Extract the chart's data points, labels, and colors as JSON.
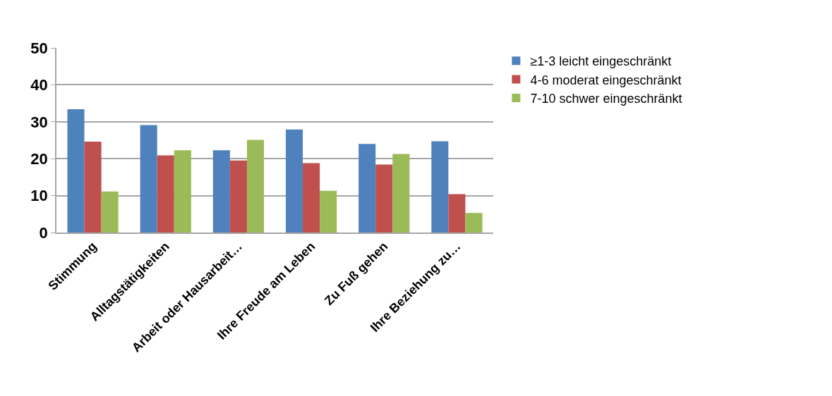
{
  "chart_data": {
    "type": "bar",
    "categories": [
      "Stimmung",
      "Alltagstätigkeiten",
      "Arbeit oder Hausarbeit…",
      "Ihre Freude am Leben",
      "Zu Fuß gehen",
      "Ihre Beziehung zu…"
    ],
    "series": [
      {
        "name": "≥1-3 leicht eingeschränkt",
        "color": "#4f81bd",
        "values": [
          33.4,
          29.1,
          22.3,
          27.9,
          24.0,
          24.7
        ]
      },
      {
        "name": "4-6 moderat eingeschränkt",
        "color": "#c0504d",
        "values": [
          24.6,
          20.9,
          19.5,
          18.8,
          18.4,
          10.4
        ]
      },
      {
        "name": "7-10 schwer eingeschränkt",
        "color": "#9bbb59",
        "values": [
          11.1,
          22.3,
          25.1,
          11.3,
          21.3,
          5.3
        ]
      }
    ],
    "ylim": [
      0,
      50
    ],
    "yticks": [
      0,
      10,
      20,
      30,
      40,
      50
    ],
    "grid": "y",
    "legend": "right"
  }
}
